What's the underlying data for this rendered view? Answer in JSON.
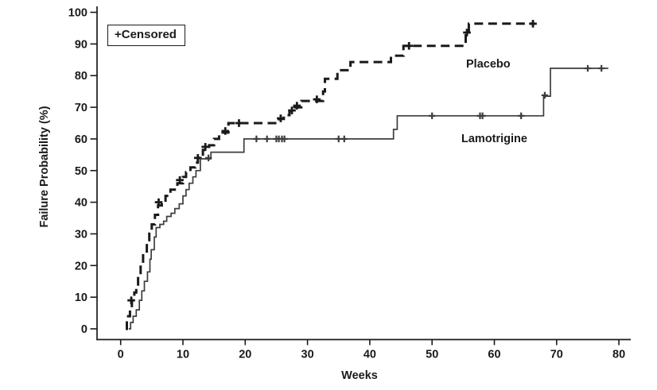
{
  "legend": {
    "text": "+Censored"
  },
  "chart_data": {
    "type": "line",
    "variant": "kaplan_meier_step",
    "title": "",
    "xlabel": "Weeks",
    "ylabel": "Failure Probability (%)",
    "xlim": [
      0,
      80
    ],
    "ylim": [
      0,
      100
    ],
    "x_ticks": [
      0,
      10,
      20,
      30,
      40,
      50,
      60,
      70,
      80
    ],
    "y_ticks": [
      0,
      10,
      20,
      30,
      40,
      50,
      60,
      70,
      80,
      90,
      100
    ],
    "grid": false,
    "censored_marker": "+",
    "legend_note": "+Censored",
    "series": [
      {
        "name": "Placebo",
        "line_style": "dashed",
        "color": "#1a1a1a",
        "line_width": 3,
        "steps": [
          [
            0.8,
            0
          ],
          [
            1.0,
            2
          ],
          [
            1.2,
            4
          ],
          [
            1.5,
            6.5
          ],
          [
            1.8,
            9
          ],
          [
            2.2,
            11.5
          ],
          [
            2.5,
            14
          ],
          [
            2.8,
            17
          ],
          [
            3.2,
            20
          ],
          [
            3.6,
            24
          ],
          [
            4.2,
            28
          ],
          [
            4.6,
            31
          ],
          [
            5.0,
            33
          ],
          [
            5.5,
            36
          ],
          [
            6.0,
            39
          ],
          [
            6.6,
            40
          ],
          [
            7.2,
            42
          ],
          [
            8.0,
            44
          ],
          [
            9.1,
            46
          ],
          [
            10.0,
            48
          ],
          [
            10.5,
            49.5
          ],
          [
            11.2,
            51
          ],
          [
            12.0,
            52.5
          ],
          [
            12.4,
            54
          ],
          [
            13.2,
            56.5
          ],
          [
            14.2,
            58
          ],
          [
            15.0,
            60
          ],
          [
            15.8,
            62
          ],
          [
            17.3,
            65
          ],
          [
            25.4,
            66.3
          ],
          [
            26.2,
            67.5
          ],
          [
            27.1,
            68.8
          ],
          [
            27.9,
            70
          ],
          [
            29.0,
            72
          ],
          [
            32.5,
            75
          ],
          [
            32.8,
            79
          ],
          [
            34.8,
            81.7
          ],
          [
            36.9,
            84.3
          ],
          [
            43.4,
            86.3
          ],
          [
            45.4,
            89.4
          ],
          [
            55.4,
            93.4
          ],
          [
            55.9,
            96.4
          ],
          [
            66.5,
            96.4
          ]
        ],
        "censored": [
          [
            1.7,
            9
          ],
          [
            6.1,
            40
          ],
          [
            9.5,
            47
          ],
          [
            12.4,
            54
          ],
          [
            13.6,
            57.5
          ],
          [
            16.8,
            62.5
          ],
          [
            19.0,
            65
          ],
          [
            25.7,
            66.5
          ],
          [
            27.5,
            69
          ],
          [
            28.3,
            70.5
          ],
          [
            31.5,
            72.5
          ],
          [
            46.3,
            89.4
          ],
          [
            55.6,
            93.6
          ],
          [
            66.2,
            96.4
          ]
        ]
      },
      {
        "name": "Lamotrigine",
        "line_style": "solid",
        "color": "#3d3d3d",
        "line_width": 1.7,
        "steps": [
          [
            1.3,
            0
          ],
          [
            1.6,
            2
          ],
          [
            2.0,
            4
          ],
          [
            2.5,
            6
          ],
          [
            3.0,
            9
          ],
          [
            3.4,
            12
          ],
          [
            3.8,
            15
          ],
          [
            4.3,
            18
          ],
          [
            4.7,
            22
          ],
          [
            4.9,
            25
          ],
          [
            5.4,
            29
          ],
          [
            5.7,
            32
          ],
          [
            6.3,
            33
          ],
          [
            6.9,
            34
          ],
          [
            7.4,
            35.5
          ],
          [
            8.1,
            36.5
          ],
          [
            8.7,
            38
          ],
          [
            9.4,
            39.5
          ],
          [
            10.0,
            42
          ],
          [
            10.5,
            44
          ],
          [
            11.0,
            46
          ],
          [
            11.6,
            48
          ],
          [
            12.1,
            50
          ],
          [
            12.8,
            53.7
          ],
          [
            14.5,
            55.8
          ],
          [
            19.8,
            60
          ],
          [
            43.8,
            63
          ],
          [
            44.4,
            67.3
          ],
          [
            67.9,
            73.5
          ],
          [
            69.0,
            82.3
          ],
          [
            78.3,
            82.3
          ]
        ],
        "censored": [
          [
            14.1,
            54
          ],
          [
            21.8,
            60
          ],
          [
            23.5,
            60
          ],
          [
            25.0,
            60
          ],
          [
            25.4,
            60
          ],
          [
            25.9,
            60
          ],
          [
            26.3,
            60
          ],
          [
            35.0,
            60
          ],
          [
            35.9,
            60
          ],
          [
            50.0,
            67.3
          ],
          [
            57.7,
            67.3
          ],
          [
            58.1,
            67.3
          ],
          [
            64.3,
            67.3
          ],
          [
            68.1,
            73.8
          ],
          [
            75.0,
            82.3
          ],
          [
            77.2,
            82.3
          ]
        ]
      }
    ]
  }
}
